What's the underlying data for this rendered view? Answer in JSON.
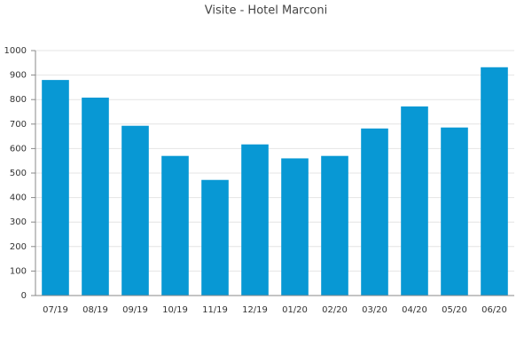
{
  "chart_data": {
    "type": "bar",
    "title": "Visite - Hotel Marconi",
    "categories": [
      "07/19",
      "08/19",
      "09/19",
      "10/19",
      "11/19",
      "12/19",
      "01/20",
      "02/20",
      "03/20",
      "04/20",
      "05/20",
      "06/20"
    ],
    "values": [
      880,
      808,
      693,
      570,
      472,
      617,
      560,
      570,
      682,
      772,
      686,
      932
    ],
    "color": "#0898d4",
    "ylim": [
      0,
      1000
    ],
    "yticks": [
      0,
      100,
      200,
      300,
      400,
      500,
      600,
      700,
      800,
      900,
      1000
    ],
    "grid": true
  }
}
